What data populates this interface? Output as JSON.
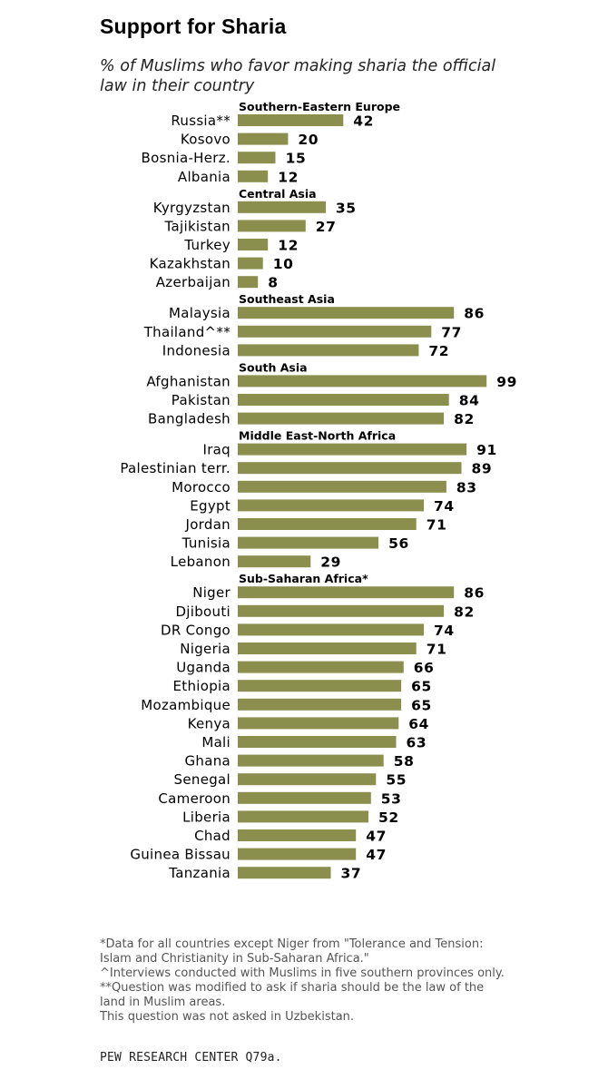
{
  "chart_data": {
    "type": "bar",
    "orientation": "horizontal",
    "title": "Support for Sharia",
    "subtitle": "% of Muslims who favor making sharia the official law in their country",
    "xlabel": "",
    "ylabel": "",
    "xlim": [
      0,
      100
    ],
    "bar_color": "#8a8f4e",
    "groups": [
      {
        "name": "Southern-Eastern  Europe",
        "categories": [
          "Russia**",
          "Kosovo",
          "Bosnia-Herz.",
          "Albania"
        ],
        "values": [
          42,
          20,
          15,
          12
        ]
      },
      {
        "name": "Central Asia",
        "categories": [
          "Kyrgyzstan",
          "Tajikistan",
          "Turkey",
          "Kazakhstan",
          "Azerbaijan"
        ],
        "values": [
          35,
          27,
          12,
          10,
          8
        ]
      },
      {
        "name": "Southeast  Asia",
        "categories": [
          "Malaysia",
          "Thailand^**",
          "Indonesia"
        ],
        "values": [
          86,
          77,
          72
        ]
      },
      {
        "name": "South Asia",
        "categories": [
          "Afghanistan",
          "Pakistan",
          "Bangladesh"
        ],
        "values": [
          99,
          84,
          82
        ]
      },
      {
        "name": "Middle East-North Africa",
        "categories": [
          "Iraq",
          "Palestinian terr.",
          "Morocco",
          "Egypt",
          "Jordan",
          "Tunisia",
          "Lebanon"
        ],
        "values": [
          91,
          89,
          83,
          74,
          71,
          56,
          29
        ]
      },
      {
        "name": "Sub-Saharan Africa*",
        "categories": [
          "Niger",
          "Djibouti",
          "DR Congo",
          "Nigeria",
          "Uganda",
          "Ethiopia",
          "Mozambique",
          "Kenya",
          "Mali",
          "Ghana",
          "Senegal",
          "Cameroon",
          "Liberia",
          "Chad",
          "Guinea Bissau",
          "Tanzania"
        ],
        "values": [
          86,
          82,
          74,
          71,
          66,
          65,
          65,
          64,
          63,
          58,
          55,
          53,
          52,
          47,
          47,
          37
        ]
      }
    ]
  },
  "footnotes": [
    "*Data for all countries except Niger from \"Tolerance and Tension: Islam and Christianity in Sub-Saharan Africa.\"",
    "^Interviews conducted with Muslims in five southern provinces only.",
    "**Question was modified to ask if sharia should be the law of the land in Muslim areas.",
    "This question was not asked in Uzbekistan."
  ],
  "source": "PEW RESEARCH  CENTER Q79a."
}
